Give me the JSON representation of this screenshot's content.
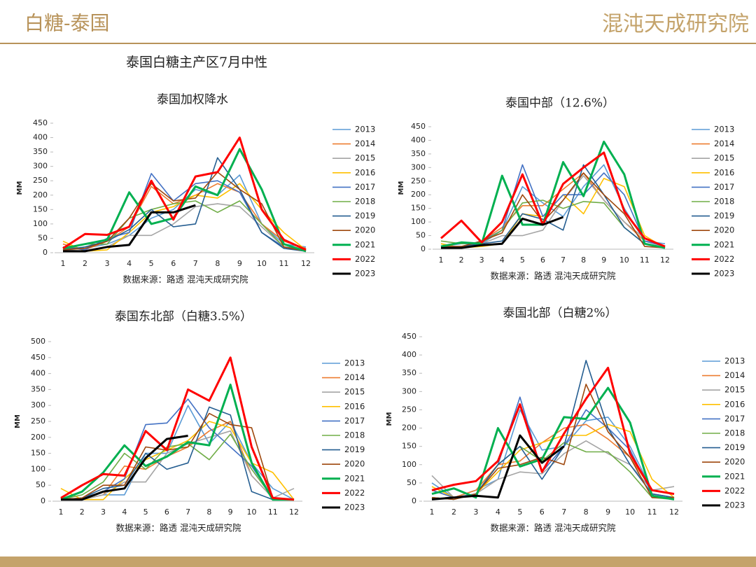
{
  "header": {
    "title": "白糖-泰国",
    "brand": "混沌天成研究院"
  },
  "subtitle": "泰国白糖主产区7月中性",
  "chart_data": [
    {
      "type": "line",
      "title": "泰国加权降水",
      "source": "数据来源：路透  混沌天成研究院",
      "ylabel": "MM",
      "categories": [
        1,
        2,
        3,
        4,
        5,
        6,
        7,
        8,
        9,
        10,
        11,
        12
      ],
      "ylim": [
        0,
        450
      ],
      "yticks": [
        0,
        50,
        100,
        150,
        200,
        250,
        300,
        350,
        400,
        450
      ],
      "series": [
        {
          "name": "2013",
          "color": "#5b9bd5",
          "values": [
            20,
            15,
            30,
            60,
            120,
            150,
            220,
            200,
            270,
            100,
            30,
            20
          ]
        },
        {
          "name": "2014",
          "color": "#ed7d31",
          "values": [
            30,
            10,
            40,
            90,
            230,
            170,
            200,
            240,
            210,
            100,
            40,
            15
          ]
        },
        {
          "name": "2015",
          "color": "#a5a5a5",
          "values": [
            10,
            5,
            20,
            60,
            60,
            100,
            160,
            170,
            160,
            90,
            20,
            10
          ]
        },
        {
          "name": "2016",
          "color": "#ffc000",
          "values": [
            40,
            5,
            10,
            70,
            140,
            160,
            200,
            190,
            240,
            150,
            70,
            10
          ]
        },
        {
          "name": "2017",
          "color": "#4472c4",
          "values": [
            20,
            10,
            50,
            70,
            275,
            180,
            240,
            250,
            210,
            70,
            20,
            10
          ]
        },
        {
          "name": "2018",
          "color": "#70ad47",
          "values": [
            10,
            30,
            30,
            120,
            150,
            170,
            180,
            140,
            180,
            100,
            20,
            5
          ]
        },
        {
          "name": "2019",
          "color": "#255e91",
          "values": [
            10,
            20,
            40,
            80,
            150,
            90,
            100,
            330,
            220,
            70,
            15,
            5
          ]
        },
        {
          "name": "2020",
          "color": "#9e480e",
          "values": [
            10,
            15,
            40,
            120,
            240,
            180,
            190,
            280,
            220,
            170,
            20,
            5
          ]
        },
        {
          "name": "2021",
          "color": "#00b050",
          "values": [
            15,
            30,
            45,
            210,
            100,
            120,
            230,
            200,
            360,
            220,
            30,
            5
          ]
        },
        {
          "name": "2022",
          "color": "#ff0000",
          "values": [
            15,
            65,
            62,
            90,
            250,
            115,
            265,
            280,
            400,
            150,
            45,
            10
          ]
        },
        {
          "name": "2023",
          "color": "#000000",
          "values": [
            5,
            5,
            20,
            27,
            140,
            140,
            165,
            null,
            null,
            null,
            null,
            null
          ]
        }
      ]
    },
    {
      "type": "line",
      "title": "泰国中部（12.6%）",
      "source": "数据来源：路透  混沌天成研究院",
      "ylabel": "MM",
      "categories": [
        1,
        2,
        3,
        4,
        5,
        6,
        7,
        8,
        9,
        10,
        11,
        12
      ],
      "ylim": [
        0,
        450
      ],
      "yticks": [
        0,
        50,
        100,
        150,
        200,
        250,
        300,
        350,
        400,
        450
      ],
      "series": [
        {
          "name": "2013",
          "color": "#5b9bd5",
          "values": [
            10,
            20,
            20,
            70,
            230,
            170,
            120,
            230,
            310,
            150,
            30,
            20
          ]
        },
        {
          "name": "2014",
          "color": "#ed7d31",
          "values": [
            20,
            5,
            30,
            80,
            160,
            160,
            220,
            280,
            180,
            100,
            30,
            10
          ]
        },
        {
          "name": "2015",
          "color": "#a5a5a5",
          "values": [
            10,
            5,
            20,
            50,
            50,
            70,
            180,
            270,
            180,
            100,
            40,
            10
          ]
        },
        {
          "name": "2016",
          "color": "#ffc000",
          "values": [
            20,
            5,
            10,
            20,
            130,
            120,
            200,
            130,
            260,
            230,
            50,
            5
          ]
        },
        {
          "name": "2017",
          "color": "#4472c4",
          "values": [
            10,
            10,
            30,
            70,
            310,
            120,
            200,
            200,
            280,
            200,
            30,
            10
          ]
        },
        {
          "name": "2018",
          "color": "#70ad47",
          "values": [
            30,
            20,
            25,
            70,
            170,
            180,
            150,
            175,
            170,
            80,
            20,
            5
          ]
        },
        {
          "name": "2019",
          "color": "#255e91",
          "values": [
            5,
            10,
            20,
            30,
            130,
            110,
            70,
            310,
            200,
            80,
            20,
            5
          ]
        },
        {
          "name": "2020",
          "color": "#9e480e",
          "values": [
            10,
            10,
            30,
            60,
            200,
            100,
            180,
            280,
            200,
            130,
            10,
            5
          ]
        },
        {
          "name": "2021",
          "color": "#00b050",
          "values": [
            10,
            25,
            20,
            270,
            90,
            90,
            320,
            195,
            395,
            275,
            20,
            5
          ]
        },
        {
          "name": "2022",
          "color": "#ff0000",
          "values": [
            40,
            105,
            25,
            100,
            275,
            90,
            240,
            300,
            355,
            140,
            40,
            10
          ]
        },
        {
          "name": "2023",
          "color": "#000000",
          "values": [
            5,
            5,
            15,
            20,
            112,
            90,
            118,
            null,
            null,
            null,
            null,
            null
          ]
        }
      ]
    },
    {
      "type": "line",
      "title": "泰国东北部（白糖3.5%）",
      "source": "数据来源：路透  混沌天成研究院",
      "ylabel": "MM",
      "categories": [
        1,
        2,
        3,
        4,
        5,
        6,
        7,
        8,
        9,
        10,
        11,
        12
      ],
      "ylim": [
        0,
        500
      ],
      "yticks": [
        0,
        50,
        100,
        150,
        200,
        250,
        300,
        350,
        400,
        450,
        500
      ],
      "series": [
        {
          "name": "2013",
          "color": "#5b9bd5",
          "values": [
            5,
            5,
            20,
            20,
            150,
            150,
            300,
            180,
            250,
            120,
            40,
            5
          ]
        },
        {
          "name": "2014",
          "color": "#ed7d31",
          "values": [
            10,
            5,
            20,
            110,
            100,
            140,
            170,
            220,
            250,
            80,
            10,
            5
          ]
        },
        {
          "name": "2015",
          "color": "#a5a5a5",
          "values": [
            5,
            5,
            20,
            60,
            60,
            150,
            180,
            200,
            220,
            80,
            10,
            40
          ]
        },
        {
          "name": "2016",
          "color": "#ffc000",
          "values": [
            40,
            5,
            5,
            70,
            130,
            160,
            190,
            250,
            230,
            120,
            90,
            5
          ]
        },
        {
          "name": "2017",
          "color": "#4472c4",
          "values": [
            5,
            10,
            30,
            70,
            240,
            245,
            320,
            230,
            170,
            110,
            10,
            5
          ]
        },
        {
          "name": "2018",
          "color": "#70ad47",
          "values": [
            5,
            20,
            60,
            150,
            100,
            170,
            180,
            130,
            210,
            100,
            10,
            5
          ]
        },
        {
          "name": "2019",
          "color": "#255e91",
          "values": [
            5,
            10,
            40,
            50,
            150,
            100,
            120,
            295,
            270,
            30,
            5,
            5
          ]
        },
        {
          "name": "2020",
          "color": "#9e480e",
          "values": [
            5,
            10,
            50,
            50,
            170,
            160,
            170,
            275,
            240,
            230,
            10,
            5
          ]
        },
        {
          "name": "2021",
          "color": "#00b050",
          "values": [
            5,
            30,
            90,
            175,
            110,
            140,
            185,
            175,
            365,
            120,
            5,
            5
          ]
        },
        {
          "name": "2022",
          "color": "#ff0000",
          "values": [
            10,
            50,
            85,
            80,
            220,
            160,
            350,
            315,
            450,
            170,
            10,
            5
          ]
        },
        {
          "name": "2023",
          "color": "#000000",
          "values": [
            5,
            5,
            30,
            40,
            135,
            195,
            205,
            null,
            null,
            null,
            null,
            null
          ]
        }
      ]
    },
    {
      "type": "line",
      "title": "泰国北部（白糖2%）",
      "source": "数据来源：路透  混沌天成研究院",
      "ylabel": "MM",
      "categories": [
        1,
        2,
        3,
        4,
        5,
        6,
        7,
        8,
        9,
        10,
        11,
        12
      ],
      "ylim": [
        0,
        450
      ],
      "yticks": [
        0,
        50,
        100,
        150,
        200,
        250,
        300,
        350,
        400,
        450
      ],
      "series": [
        {
          "name": "2013",
          "color": "#5b9bd5",
          "values": [
            50,
            10,
            30,
            60,
            250,
            140,
            150,
            220,
            230,
            150,
            30,
            20
          ]
        },
        {
          "name": "2014",
          "color": "#ed7d31",
          "values": [
            30,
            10,
            30,
            100,
            110,
            160,
            200,
            210,
            170,
            120,
            30,
            20
          ]
        },
        {
          "name": "2015",
          "color": "#a5a5a5",
          "values": [
            70,
            10,
            20,
            60,
            80,
            75,
            130,
            165,
            130,
            100,
            30,
            40
          ]
        },
        {
          "name": "2016",
          "color": "#ffc000",
          "values": [
            40,
            10,
            20,
            80,
            140,
            160,
            180,
            180,
            210,
            190,
            60,
            10
          ]
        },
        {
          "name": "2017",
          "color": "#4472c4",
          "values": [
            30,
            10,
            20,
            100,
            285,
            80,
            150,
            250,
            200,
            140,
            20,
            10
          ]
        },
        {
          "name": "2018",
          "color": "#70ad47",
          "values": [
            10,
            5,
            20,
            100,
            150,
            110,
            160,
            135,
            135,
            80,
            10,
            5
          ]
        },
        {
          "name": "2019",
          "color": "#255e91",
          "values": [
            10,
            5,
            20,
            100,
            150,
            60,
            150,
            385,
            200,
            100,
            20,
            10
          ]
        },
        {
          "name": "2020",
          "color": "#9e480e",
          "values": [
            10,
            5,
            20,
            90,
            100,
            120,
            100,
            320,
            190,
            120,
            10,
            10
          ]
        },
        {
          "name": "2021",
          "color": "#00b050",
          "values": [
            20,
            35,
            10,
            200,
            95,
            115,
            230,
            225,
            310,
            215,
            15,
            5
          ]
        },
        {
          "name": "2022",
          "color": "#ff0000",
          "values": [
            30,
            45,
            55,
            110,
            265,
            80,
            185,
            280,
            365,
            130,
            30,
            20
          ]
        },
        {
          "name": "2023",
          "color": "#000000",
          "values": [
            5,
            10,
            15,
            10,
            180,
            105,
            150,
            null,
            null,
            null,
            null,
            null
          ]
        }
      ]
    }
  ]
}
